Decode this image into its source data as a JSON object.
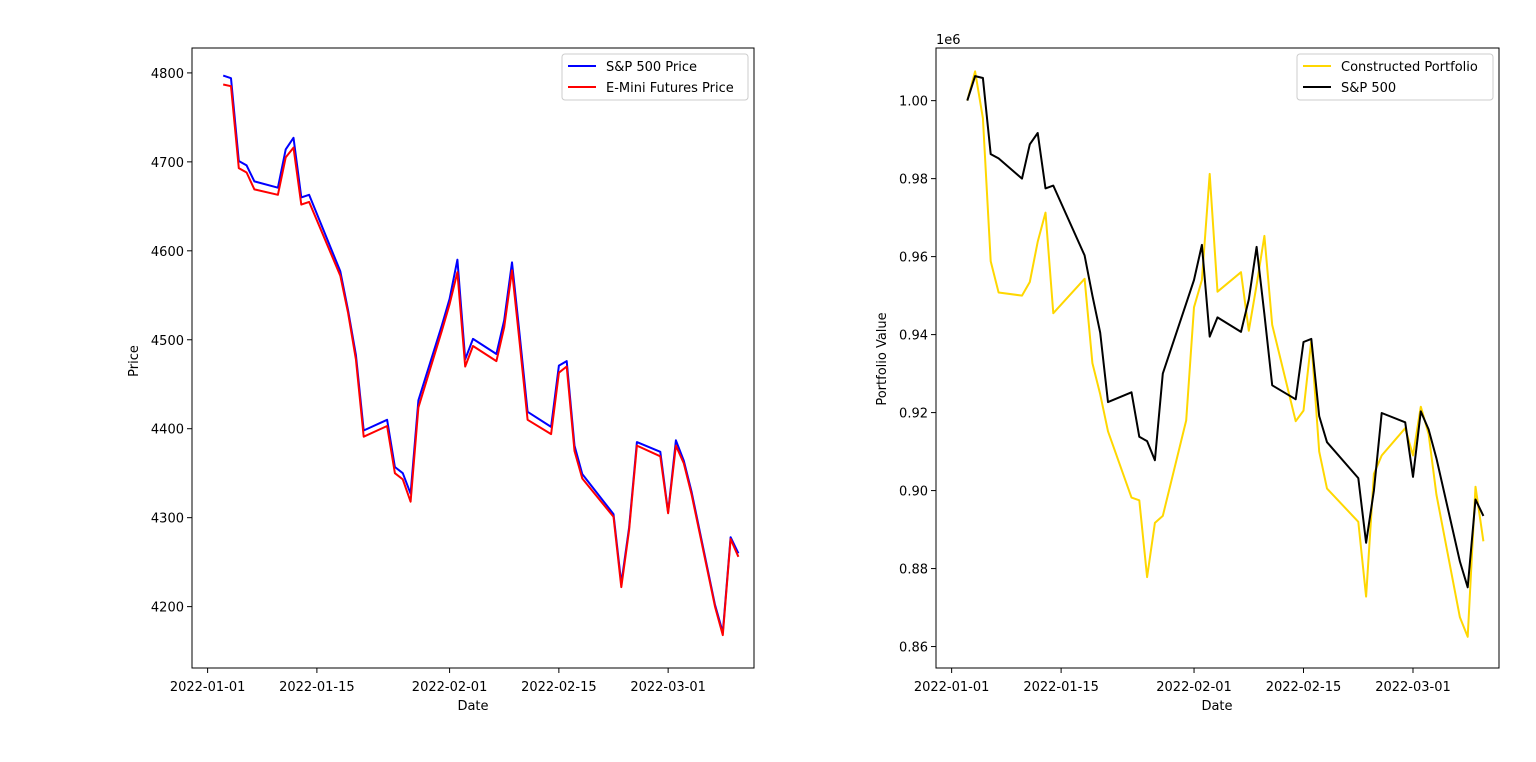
{
  "chart_data": [
    {
      "type": "line",
      "title": "",
      "xlabel": "Date",
      "ylabel": "Price",
      "xlim": [
        "2021-12-30",
        "2022-03-12"
      ],
      "ylim": [
        4131,
        4828
      ],
      "xticks": [
        "2022-01-01",
        "2022-01-15",
        "2022-02-01",
        "2022-02-15",
        "2022-03-01"
      ],
      "yticks": [
        4200,
        4300,
        4400,
        4500,
        4600,
        4700,
        4800
      ],
      "ytick_labels": [
        "4200",
        "4300",
        "4400",
        "4500",
        "4600",
        "4700",
        "4800"
      ],
      "offset_label": "",
      "grid": false,
      "legend": "upper right",
      "dates": [
        "2022-01-03",
        "2022-01-04",
        "2022-01-05",
        "2022-01-06",
        "2022-01-07",
        "2022-01-10",
        "2022-01-11",
        "2022-01-12",
        "2022-01-13",
        "2022-01-14",
        "2022-01-18",
        "2022-01-19",
        "2022-01-20",
        "2022-01-21",
        "2022-01-24",
        "2022-01-25",
        "2022-01-26",
        "2022-01-27",
        "2022-01-28",
        "2022-01-31",
        "2022-02-01",
        "2022-02-02",
        "2022-02-03",
        "2022-02-04",
        "2022-02-07",
        "2022-02-08",
        "2022-02-09",
        "2022-02-10",
        "2022-02-11",
        "2022-02-14",
        "2022-02-15",
        "2022-02-16",
        "2022-02-17",
        "2022-02-18",
        "2022-02-22",
        "2022-02-23",
        "2022-02-24",
        "2022-02-25",
        "2022-02-28",
        "2022-03-01",
        "2022-03-02",
        "2022-03-03",
        "2022-03-04",
        "2022-03-07",
        "2022-03-08",
        "2022-03-09",
        "2022-03-10"
      ],
      "series": [
        {
          "name": "S&P 500 Price",
          "color": "#0000ff",
          "values": [
            4797,
            4794,
            4701,
            4696,
            4678,
            4671,
            4714,
            4727,
            4660,
            4663,
            4577,
            4533,
            4483,
            4398,
            4410,
            4357,
            4350,
            4327,
            4432,
            4516,
            4546,
            4590,
            4478,
            4501,
            4484,
            4522,
            4587,
            4504,
            4419,
            4402,
            4471,
            4476,
            4381,
            4349,
            4304,
            4226,
            4289,
            4385,
            4374,
            4306,
            4387,
            4364,
            4329,
            4202,
            4171,
            4278,
            4260
          ]
        },
        {
          "name": "E-Mini Futures Price",
          "color": "#ff0000",
          "values": [
            4787,
            4785,
            4693,
            4688,
            4669,
            4663,
            4705,
            4716,
            4652,
            4655,
            4572,
            4530,
            4478,
            4391,
            4403,
            4350,
            4343,
            4318,
            4424,
            4510,
            4540,
            4576,
            4470,
            4493,
            4476,
            4514,
            4578,
            4495,
            4410,
            4394,
            4463,
            4470,
            4375,
            4344,
            4301,
            4222,
            4286,
            4381,
            4369,
            4305,
            4381,
            4361,
            4326,
            4200,
            4168,
            4276,
            4256
          ]
        }
      ]
    },
    {
      "type": "line",
      "title": "",
      "xlabel": "Date",
      "ylabel": "Portfolio Value",
      "xlim": [
        "2021-12-30",
        "2022-03-12"
      ],
      "ylim": [
        0.8545,
        1.0135
      ],
      "xticks": [
        "2022-01-01",
        "2022-01-15",
        "2022-02-01",
        "2022-02-15",
        "2022-03-01"
      ],
      "yticks": [
        0.86,
        0.88,
        0.9,
        0.92,
        0.94,
        0.96,
        0.98,
        1.0
      ],
      "ytick_labels": [
        "0.86",
        "0.88",
        "0.90",
        "0.92",
        "0.94",
        "0.96",
        "0.98",
        "1.00"
      ],
      "offset_label": "1e6",
      "grid": false,
      "legend": "upper right",
      "dates": [
        "2022-01-03",
        "2022-01-04",
        "2022-01-05",
        "2022-01-06",
        "2022-01-07",
        "2022-01-10",
        "2022-01-11",
        "2022-01-12",
        "2022-01-13",
        "2022-01-14",
        "2022-01-18",
        "2022-01-19",
        "2022-01-20",
        "2022-01-21",
        "2022-01-24",
        "2022-01-25",
        "2022-01-26",
        "2022-01-27",
        "2022-01-28",
        "2022-01-31",
        "2022-02-01",
        "2022-02-02",
        "2022-02-03",
        "2022-02-04",
        "2022-02-07",
        "2022-02-08",
        "2022-02-09",
        "2022-02-10",
        "2022-02-11",
        "2022-02-14",
        "2022-02-15",
        "2022-02-16",
        "2022-02-17",
        "2022-02-18",
        "2022-02-22",
        "2022-02-23",
        "2022-02-24",
        "2022-02-25",
        "2022-02-28",
        "2022-03-01",
        "2022-03-02",
        "2022-03-03",
        "2022-03-04",
        "2022-03-07",
        "2022-03-08",
        "2022-03-09",
        "2022-03-10"
      ],
      "series": [
        {
          "name": "Constructed Portfolio",
          "color": "#ffd700",
          "values": [
            1.0,
            1.0075,
            0.9955,
            0.9588,
            0.9508,
            0.95,
            0.9535,
            0.9638,
            0.9713,
            0.9455,
            0.9543,
            0.9327,
            0.9247,
            0.9152,
            0.8982,
            0.8975,
            0.8778,
            0.8917,
            0.8935,
            0.918,
            0.947,
            0.954,
            0.9812,
            0.951,
            0.956,
            0.941,
            0.9527,
            0.9653,
            0.9425,
            0.9178,
            0.9205,
            0.9385,
            0.91,
            0.9005,
            0.892,
            0.8728,
            0.9043,
            0.909,
            0.916,
            0.909,
            0.9215,
            0.9145,
            0.899,
            0.8675,
            0.8625,
            0.901,
            0.887
          ]
        },
        {
          "name": "S&P 500",
          "color": "#000000",
          "values": [
            1.0,
            1.0063,
            1.0058,
            0.9863,
            0.9852,
            0.98,
            0.9888,
            0.9917,
            0.9775,
            0.9782,
            0.9603,
            0.95,
            0.9405,
            0.9227,
            0.9252,
            0.9138,
            0.9127,
            0.9078,
            0.93,
            0.948,
            0.954,
            0.963,
            0.9395,
            0.9444,
            0.9407,
            0.949,
            0.9625,
            0.9452,
            0.927,
            0.9234,
            0.9381,
            0.9389,
            0.9191,
            0.9124,
            0.9032,
            0.8866,
            0.9,
            0.9199,
            0.9175,
            0.9035,
            0.9203,
            0.9157,
            0.9083,
            0.8818,
            0.8752,
            0.8977,
            0.8935
          ]
        }
      ]
    }
  ]
}
